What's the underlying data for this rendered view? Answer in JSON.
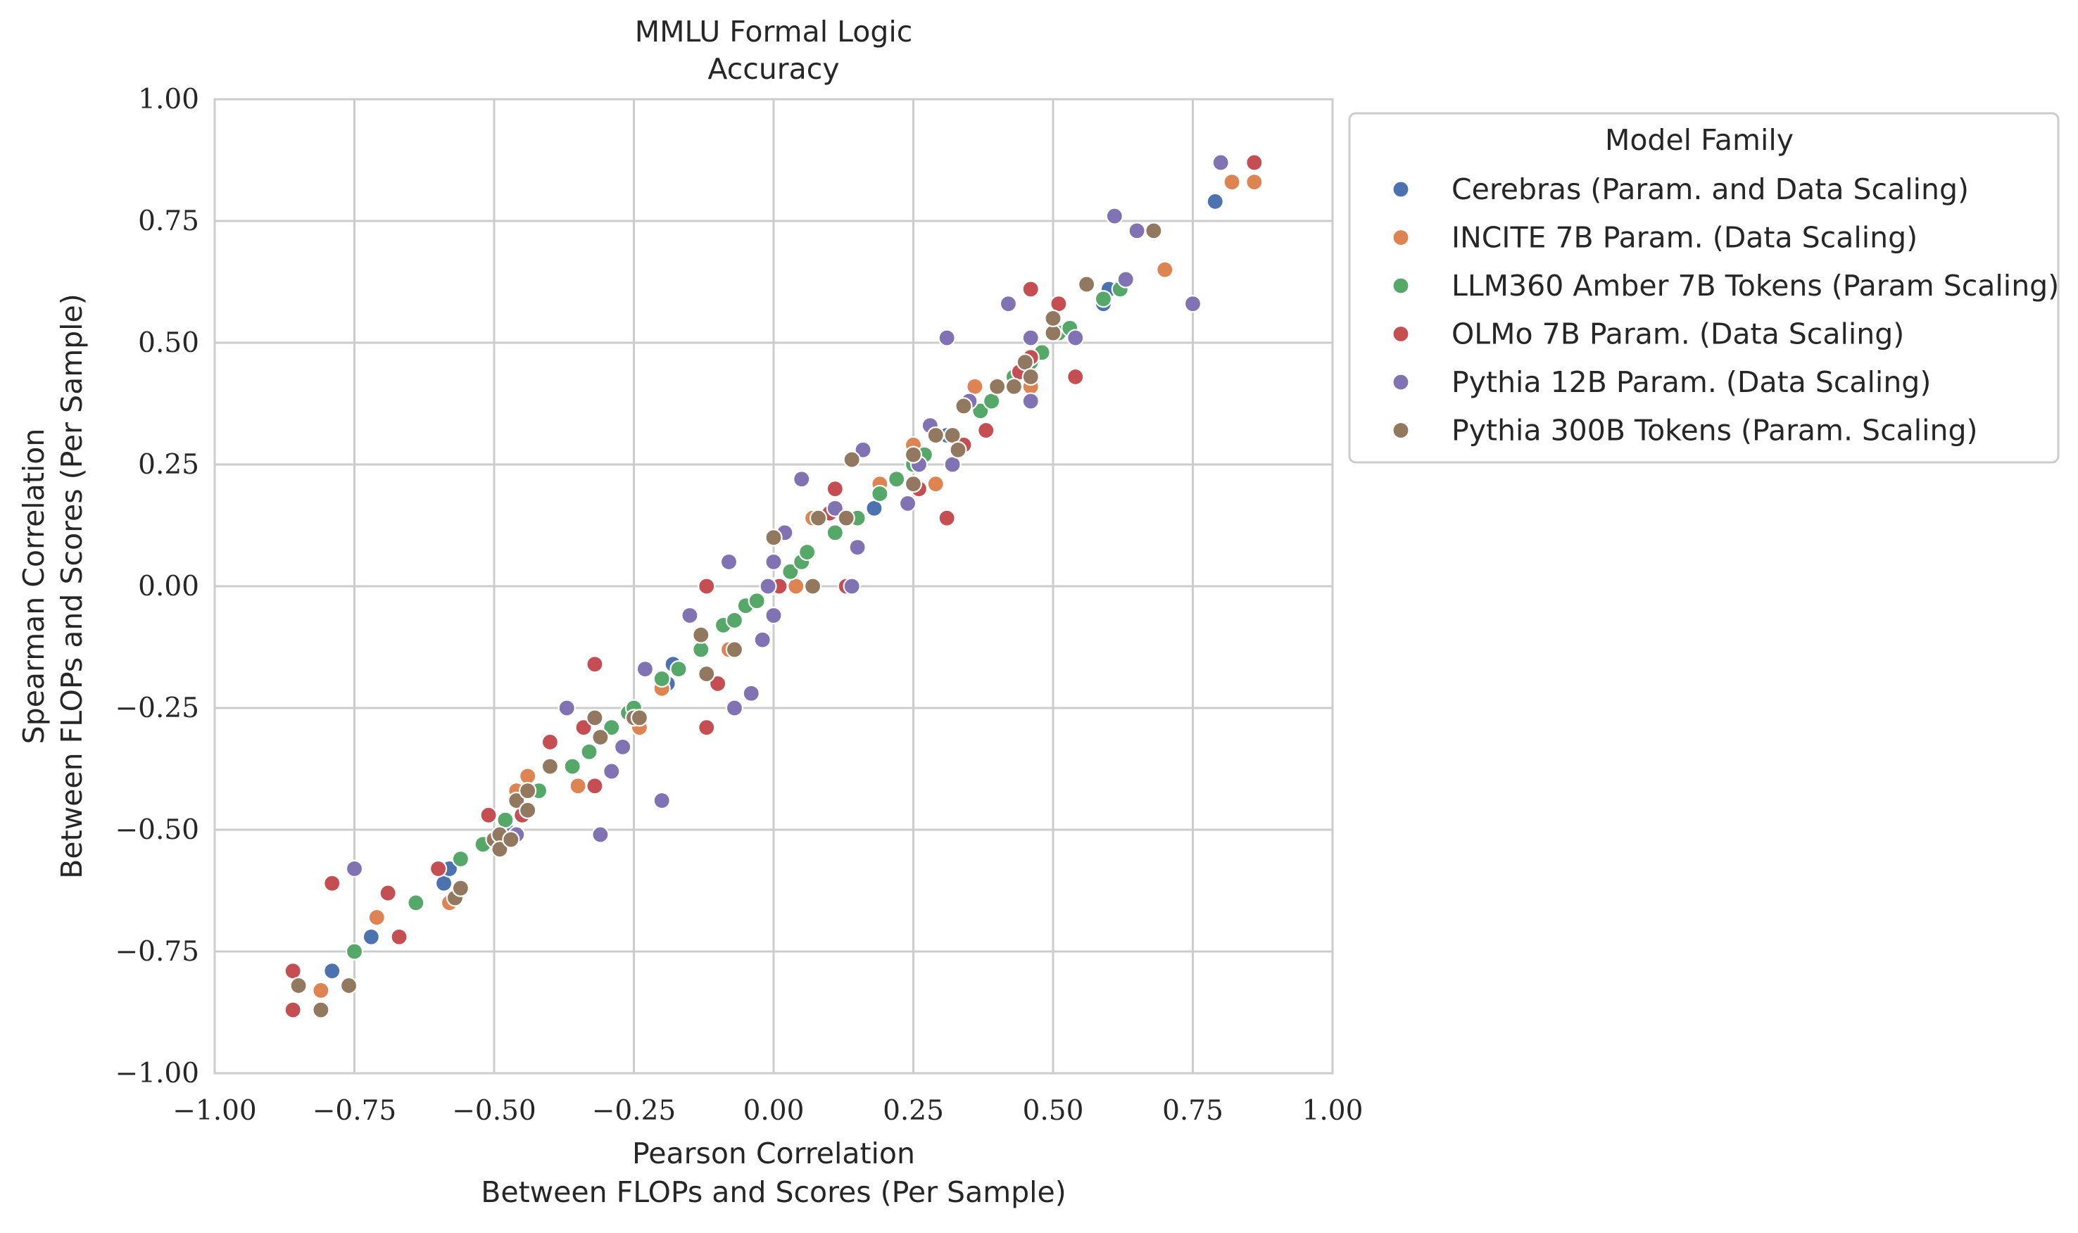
{
  "chart_data": {
    "type": "scatter",
    "title": "MMLU Formal Logic\nAccuracy",
    "xlabel": "Pearson Correlation\nBetween FLOPs and Scores (Per Sample)",
    "ylabel": "Spearman Correlation\nBetween FLOPs and Scores (Per Sample)",
    "xlim": [
      -1.0,
      1.0
    ],
    "ylim": [
      -1.0,
      1.0
    ],
    "x_ticks": [
      "−1.00",
      "−0.75",
      "−0.50",
      "−0.25",
      "0.00",
      "0.25",
      "0.50",
      "0.75",
      "1.00"
    ],
    "y_ticks": [
      "−1.00",
      "−0.75",
      "−0.50",
      "−0.25",
      "0.00",
      "0.25",
      "0.50",
      "0.75",
      "1.00"
    ],
    "grid": true,
    "legend": {
      "title": "Model Family",
      "placement": "outside-right"
    },
    "series": [
      {
        "name": "Cerebras (Param. and Data Scaling)",
        "color": "#4c72b0",
        "points": [
          [
            -0.79,
            -0.79
          ],
          [
            -0.72,
            -0.72
          ],
          [
            -0.59,
            -0.61
          ],
          [
            -0.58,
            -0.58
          ],
          [
            -0.48,
            -0.49
          ],
          [
            -0.42,
            -0.42
          ],
          [
            -0.19,
            -0.2
          ],
          [
            -0.18,
            -0.16
          ],
          [
            0.18,
            0.16
          ],
          [
            0.31,
            0.31
          ],
          [
            0.43,
            0.41
          ],
          [
            0.59,
            0.58
          ],
          [
            0.6,
            0.61
          ],
          [
            0.79,
            0.79
          ]
        ]
      },
      {
        "name": "INCITE 7B Param. (Data Scaling)",
        "color": "#dd8452",
        "points": [
          [
            -0.81,
            -0.83
          ],
          [
            -0.71,
            -0.68
          ],
          [
            -0.58,
            -0.65
          ],
          [
            -0.46,
            -0.42
          ],
          [
            -0.44,
            -0.39
          ],
          [
            -0.35,
            -0.41
          ],
          [
            -0.24,
            -0.29
          ],
          [
            -0.2,
            -0.21
          ],
          [
            -0.08,
            -0.13
          ],
          [
            0.04,
            0.0
          ],
          [
            0.07,
            0.14
          ],
          [
            0.19,
            0.21
          ],
          [
            0.25,
            0.29
          ],
          [
            0.29,
            0.21
          ],
          [
            0.36,
            0.41
          ],
          [
            0.46,
            0.41
          ],
          [
            0.7,
            0.65
          ],
          [
            0.82,
            0.83
          ],
          [
            0.86,
            0.83
          ]
        ]
      },
      {
        "name": "LLM360 Amber 7B Tokens (Param Scaling)",
        "color": "#55a868",
        "points": [
          [
            -0.75,
            -0.75
          ],
          [
            -0.64,
            -0.65
          ],
          [
            -0.56,
            -0.56
          ],
          [
            -0.52,
            -0.53
          ],
          [
            -0.48,
            -0.48
          ],
          [
            -0.42,
            -0.42
          ],
          [
            -0.36,
            -0.37
          ],
          [
            -0.33,
            -0.34
          ],
          [
            -0.29,
            -0.29
          ],
          [
            -0.26,
            -0.26
          ],
          [
            -0.25,
            -0.25
          ],
          [
            -0.2,
            -0.19
          ],
          [
            -0.17,
            -0.17
          ],
          [
            -0.13,
            -0.13
          ],
          [
            -0.09,
            -0.08
          ],
          [
            -0.07,
            -0.07
          ],
          [
            -0.05,
            -0.04
          ],
          [
            -0.03,
            -0.03
          ],
          [
            0.0,
            0.0
          ],
          [
            0.03,
            0.03
          ],
          [
            0.05,
            0.05
          ],
          [
            0.06,
            0.07
          ],
          [
            0.11,
            0.11
          ],
          [
            0.15,
            0.14
          ],
          [
            0.19,
            0.19
          ],
          [
            0.22,
            0.22
          ],
          [
            0.25,
            0.25
          ],
          [
            0.27,
            0.27
          ],
          [
            0.37,
            0.36
          ],
          [
            0.39,
            0.38
          ],
          [
            0.43,
            0.43
          ],
          [
            0.46,
            0.46
          ],
          [
            0.48,
            0.48
          ],
          [
            0.51,
            0.52
          ],
          [
            0.53,
            0.53
          ],
          [
            0.59,
            0.59
          ],
          [
            0.62,
            0.61
          ]
        ]
      },
      {
        "name": "OLMo 7B Param. (Data Scaling)",
        "color": "#c44e52",
        "points": [
          [
            -0.86,
            -0.79
          ],
          [
            -0.86,
            -0.87
          ],
          [
            -0.79,
            -0.61
          ],
          [
            -0.69,
            -0.63
          ],
          [
            -0.67,
            -0.72
          ],
          [
            -0.6,
            -0.58
          ],
          [
            -0.51,
            -0.47
          ],
          [
            -0.45,
            -0.47
          ],
          [
            -0.4,
            -0.32
          ],
          [
            -0.34,
            -0.29
          ],
          [
            -0.32,
            -0.16
          ],
          [
            -0.32,
            -0.41
          ],
          [
            -0.12,
            0.0
          ],
          [
            -0.12,
            -0.29
          ],
          [
            -0.1,
            -0.2
          ],
          [
            0.01,
            0.0
          ],
          [
            0.1,
            0.15
          ],
          [
            0.11,
            0.2
          ],
          [
            0.13,
            0.0
          ],
          [
            0.26,
            0.2
          ],
          [
            0.31,
            0.14
          ],
          [
            0.34,
            0.29
          ],
          [
            0.38,
            0.32
          ],
          [
            0.44,
            0.44
          ],
          [
            0.46,
            0.61
          ],
          [
            0.46,
            0.47
          ],
          [
            0.51,
            0.58
          ],
          [
            0.54,
            0.43
          ],
          [
            0.86,
            0.87
          ]
        ]
      },
      {
        "name": "Pythia 12B Param. (Data Scaling)",
        "color": "#8172b3",
        "points": [
          [
            -0.75,
            -0.58
          ],
          [
            -0.46,
            -0.51
          ],
          [
            -0.37,
            -0.25
          ],
          [
            -0.31,
            -0.51
          ],
          [
            -0.29,
            -0.38
          ],
          [
            -0.27,
            -0.33
          ],
          [
            -0.23,
            -0.17
          ],
          [
            -0.2,
            -0.44
          ],
          [
            -0.15,
            -0.06
          ],
          [
            -0.08,
            0.05
          ],
          [
            -0.07,
            -0.25
          ],
          [
            -0.04,
            -0.22
          ],
          [
            -0.02,
            -0.11
          ],
          [
            -0.01,
            0.0
          ],
          [
            0.0,
            -0.06
          ],
          [
            0.0,
            0.05
          ],
          [
            0.02,
            0.11
          ],
          [
            0.05,
            0.22
          ],
          [
            0.11,
            0.16
          ],
          [
            0.14,
            0.0
          ],
          [
            0.15,
            0.08
          ],
          [
            0.16,
            0.28
          ],
          [
            0.24,
            0.17
          ],
          [
            0.26,
            0.25
          ],
          [
            0.28,
            0.33
          ],
          [
            0.31,
            0.51
          ],
          [
            0.32,
            0.25
          ],
          [
            0.35,
            0.38
          ],
          [
            0.42,
            0.58
          ],
          [
            0.46,
            0.38
          ],
          [
            0.46,
            0.51
          ],
          [
            0.54,
            0.51
          ],
          [
            0.61,
            0.76
          ],
          [
            0.63,
            0.63
          ],
          [
            0.65,
            0.73
          ],
          [
            0.75,
            0.58
          ],
          [
            0.8,
            0.87
          ]
        ]
      },
      {
        "name": "Pythia 300B Tokens (Param. Scaling)",
        "color": "#937860",
        "points": [
          [
            -0.85,
            -0.82
          ],
          [
            -0.81,
            -0.87
          ],
          [
            -0.76,
            -0.82
          ],
          [
            -0.57,
            -0.64
          ],
          [
            -0.56,
            -0.62
          ],
          [
            -0.5,
            -0.52
          ],
          [
            -0.49,
            -0.51
          ],
          [
            -0.49,
            -0.54
          ],
          [
            -0.47,
            -0.52
          ],
          [
            -0.46,
            -0.44
          ],
          [
            -0.44,
            -0.42
          ],
          [
            -0.44,
            -0.46
          ],
          [
            -0.4,
            -0.37
          ],
          [
            -0.32,
            -0.27
          ],
          [
            -0.31,
            -0.31
          ],
          [
            -0.25,
            -0.27
          ],
          [
            -0.24,
            -0.27
          ],
          [
            -0.13,
            -0.1
          ],
          [
            -0.12,
            -0.18
          ],
          [
            -0.07,
            -0.13
          ],
          [
            0.0,
            0.1
          ],
          [
            0.07,
            0.0
          ],
          [
            0.08,
            0.14
          ],
          [
            0.13,
            0.14
          ],
          [
            0.14,
            0.26
          ],
          [
            0.25,
            0.21
          ],
          [
            0.25,
            0.27
          ],
          [
            0.29,
            0.31
          ],
          [
            0.32,
            0.31
          ],
          [
            0.33,
            0.28
          ],
          [
            0.34,
            0.37
          ],
          [
            0.4,
            0.41
          ],
          [
            0.43,
            0.41
          ],
          [
            0.45,
            0.46
          ],
          [
            0.46,
            0.43
          ],
          [
            0.5,
            0.52
          ],
          [
            0.5,
            0.55
          ],
          [
            0.56,
            0.62
          ],
          [
            0.68,
            0.73
          ]
        ]
      }
    ]
  }
}
